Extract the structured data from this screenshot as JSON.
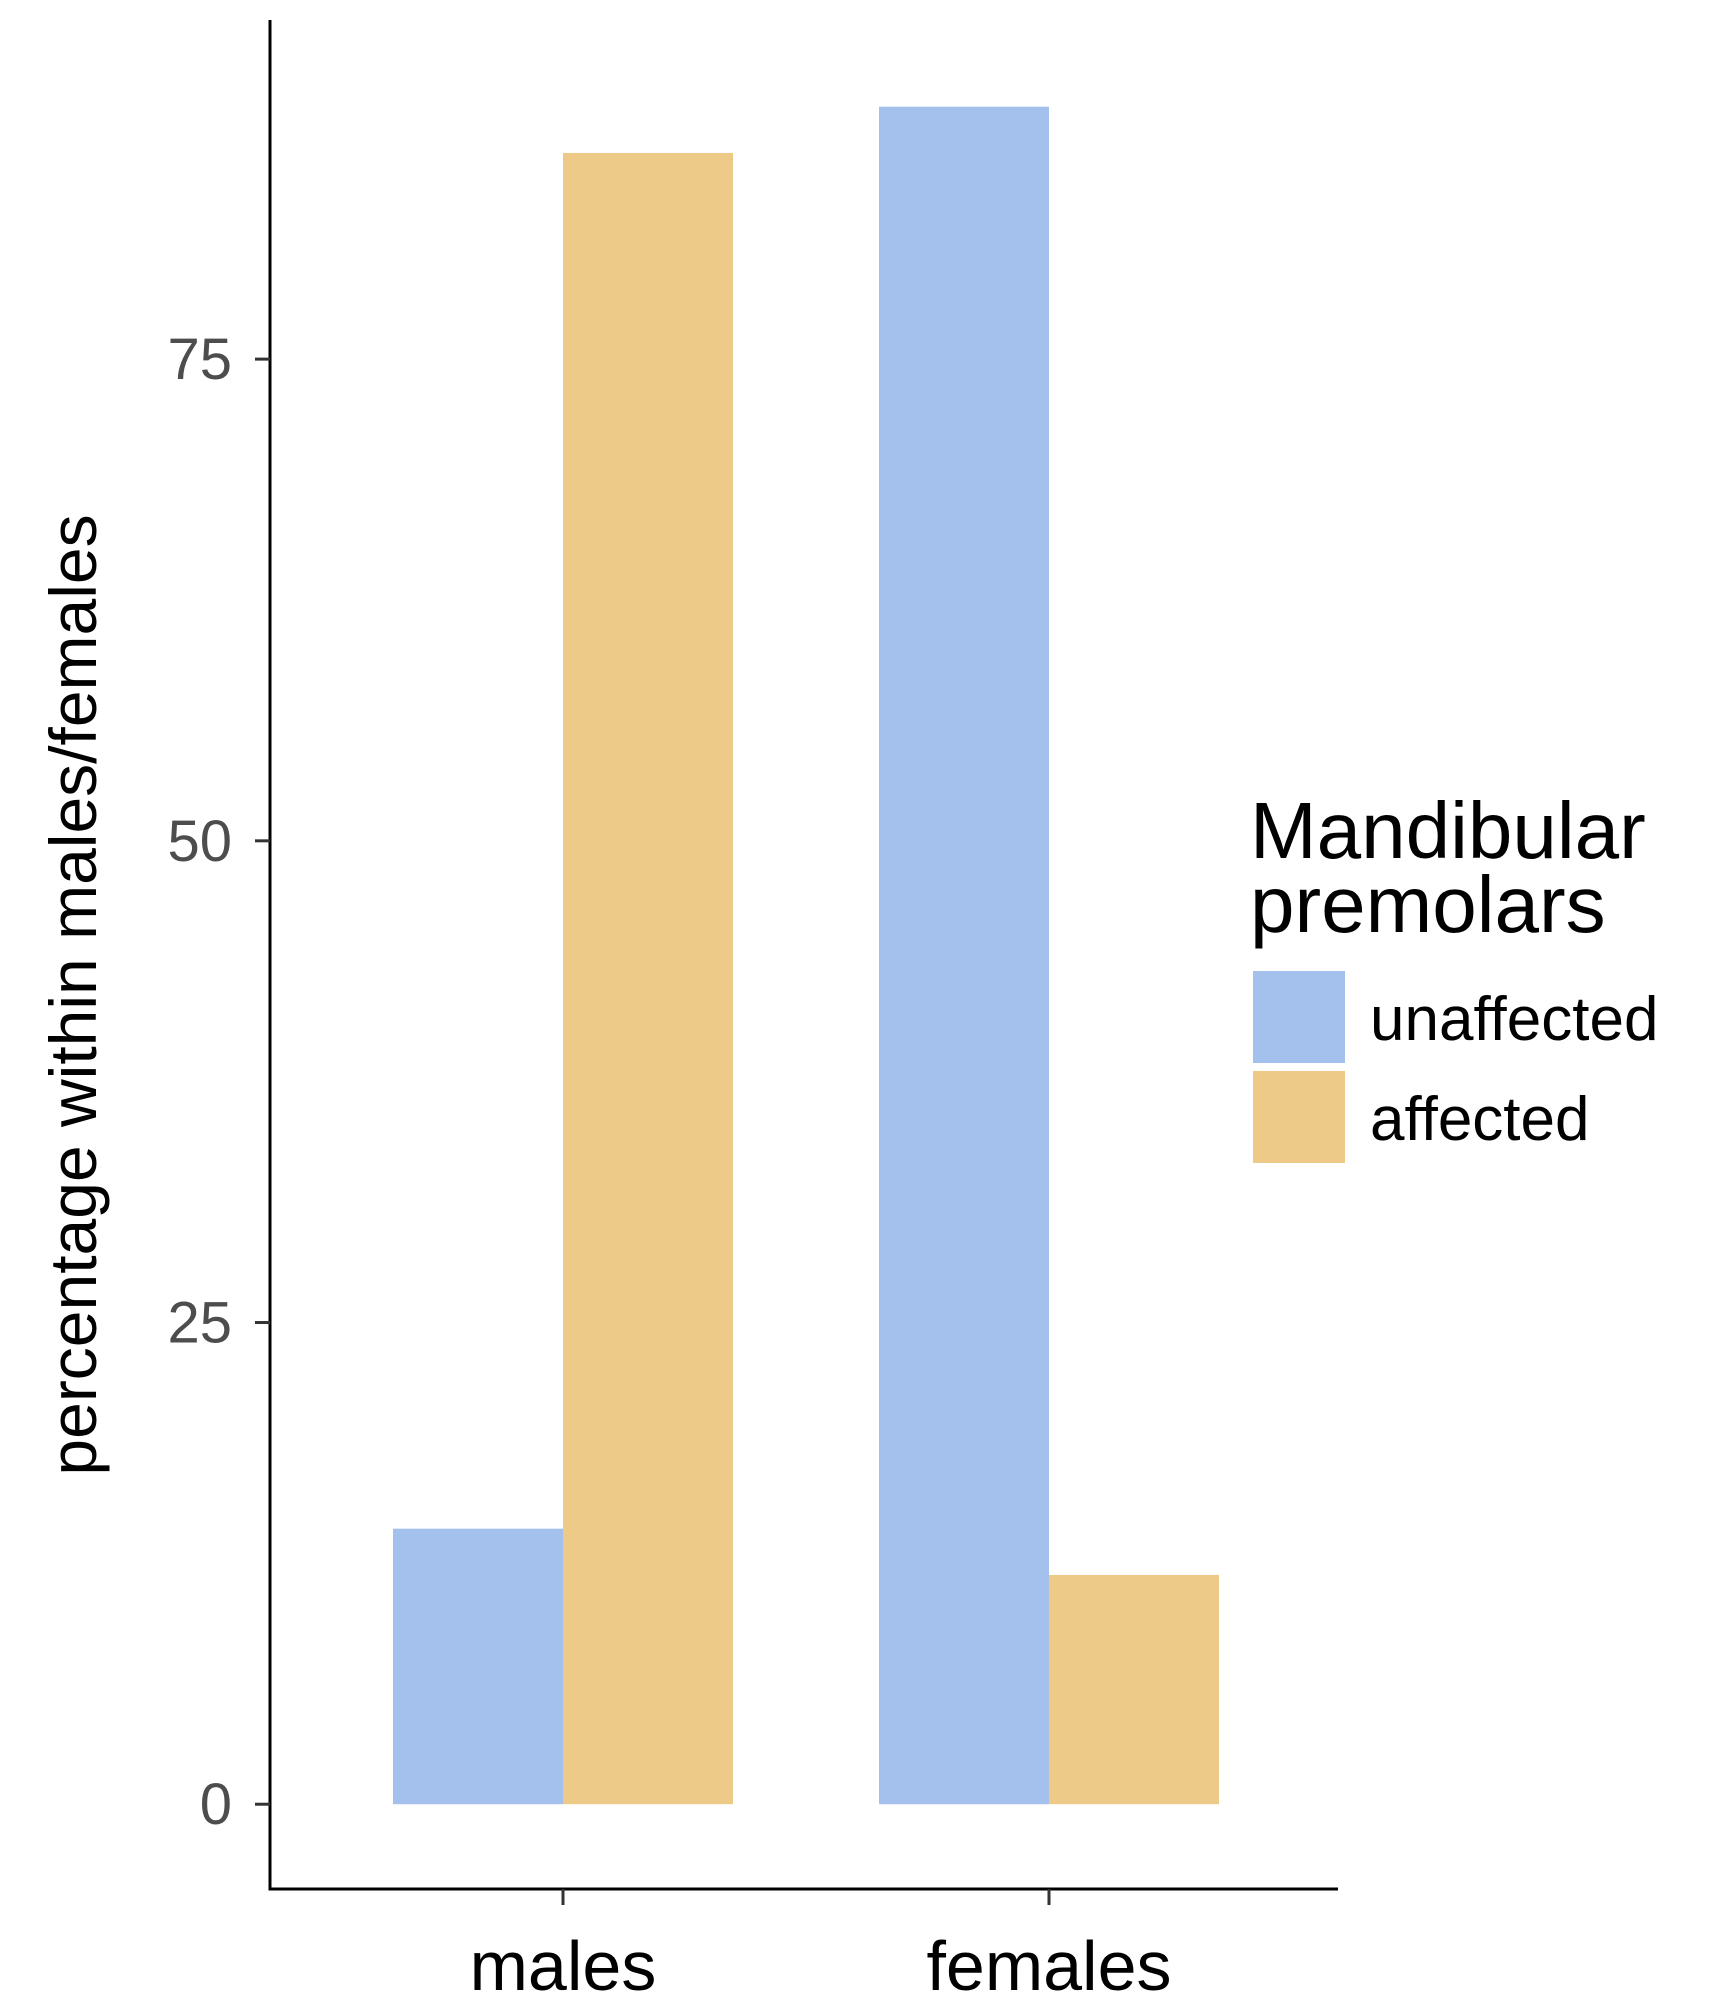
{
  "chart_data": {
    "type": "bar",
    "title": "",
    "xlabel": "",
    "ylabel": "percentage within males/females",
    "categories": [
      "males",
      "females"
    ],
    "series": [
      {
        "name": "unaffected",
        "color": "#a4c0ed",
        "values": [
          14.3,
          88.1
        ]
      },
      {
        "name": "affected",
        "color": "#edca88",
        "values": [
          85.7,
          11.9
        ]
      }
    ],
    "yticks": [
      0,
      25,
      50,
      75
    ],
    "ytick_labels": [
      "0",
      "25",
      "50",
      "75"
    ],
    "ylim": [
      -4.4,
      92.6
    ],
    "grid": false,
    "legend": {
      "title_lines": [
        "Mandibular",
        "premolars"
      ],
      "position": "right",
      "entries": [
        "unaffected",
        "affected"
      ]
    }
  }
}
